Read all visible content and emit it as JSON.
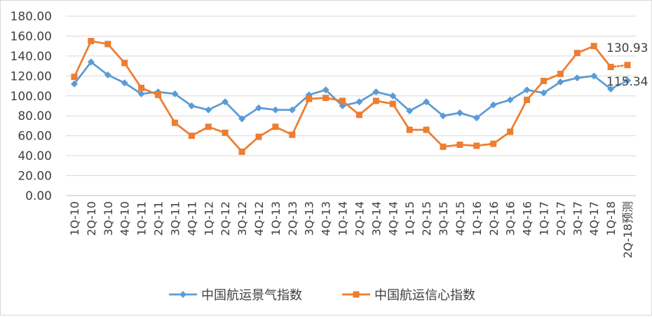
{
  "chart_data": {
    "type": "line",
    "categories": [
      "1Q-10",
      "2Q-10",
      "3Q-10",
      "4Q-10",
      "1Q-11",
      "2Q-11",
      "3Q-11",
      "4Q-11",
      "1Q-12",
      "2Q-12",
      "3Q-12",
      "4Q-12",
      "1Q-13",
      "2Q-13",
      "3Q-13",
      "4Q-13",
      "1Q-14",
      "2Q-14",
      "3Q-14",
      "4Q-14",
      "1Q-15",
      "2Q-15",
      "3Q-15",
      "4Q-15",
      "1Q-16",
      "2Q-16",
      "3Q-16",
      "4Q-16",
      "1Q-17",
      "2Q-17",
      "3Q-17",
      "4Q-17",
      "1Q-18",
      "2Q-18预测"
    ],
    "y_ticks": [
      "0.00",
      "20.00",
      "40.00",
      "60.00",
      "80.00",
      "100.00",
      "120.00",
      "140.00",
      "160.00",
      "180.00"
    ],
    "ylim": [
      0,
      180
    ],
    "grid": true,
    "legend_position": "bottom",
    "series": [
      {
        "name": "中国航运景气指数",
        "color": "#5b9bd5",
        "marker": "diamond",
        "values": [
          112,
          134,
          121,
          113,
          102,
          104,
          102,
          90,
          86,
          94,
          77,
          88,
          86,
          86,
          101,
          106,
          90,
          94,
          104,
          100,
          85,
          94,
          80,
          83,
          78,
          91,
          96,
          106,
          103,
          114,
          118,
          120,
          107,
          115.34
        ]
      },
      {
        "name": "中国航运信心指数",
        "color": "#ed7d31",
        "marker": "square",
        "values": [
          119,
          155,
          152,
          133,
          108,
          101,
          73,
          60,
          69,
          63,
          44,
          59,
          69,
          61,
          97,
          98,
          95,
          81,
          95,
          92,
          66,
          66,
          49,
          51,
          50,
          52,
          64,
          96,
          115,
          122,
          143,
          150,
          129,
          130.93
        ]
      }
    ],
    "annotations": [
      "130.93",
      "115.34"
    ]
  }
}
